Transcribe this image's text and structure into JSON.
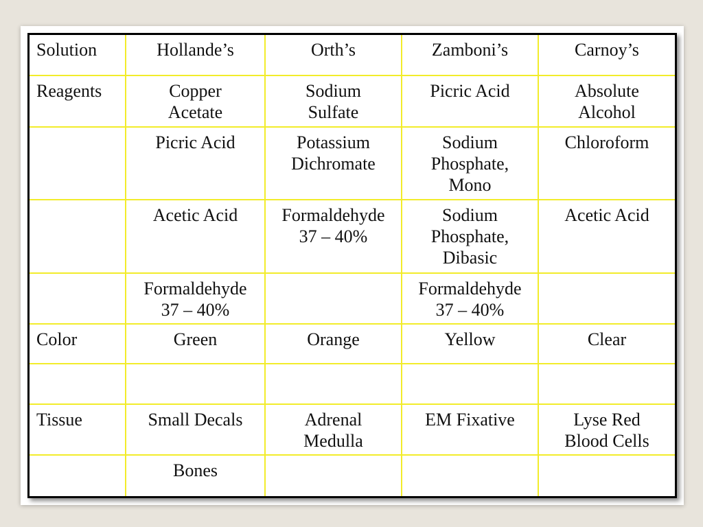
{
  "table": {
    "rows": [
      [
        "Solution",
        "Hollande’s",
        "Orth’s",
        "Zamboni’s",
        "Carnoy’s"
      ],
      [
        "Reagents",
        "Copper\nAcetate",
        "Sodium\nSulfate",
        "Picric Acid",
        "Absolute\nAlcohol"
      ],
      [
        "",
        "Picric Acid",
        "Potassium\nDichromate",
        "Sodium\nPhosphate,\nMono",
        "Chloroform"
      ],
      [
        "",
        "Acetic Acid",
        "Formaldehyde\n37 – 40%",
        "Sodium\nPhosphate,\nDibasic",
        "Acetic Acid"
      ],
      [
        "",
        "Formaldehyde\n37 – 40%",
        "",
        "Formaldehyde\n37 – 40%",
        ""
      ],
      [
        "Color",
        "Green",
        "Orange",
        "Yellow",
        "Clear"
      ],
      [
        "",
        "",
        "",
        "",
        ""
      ],
      [
        "Tissue",
        "Small Decals",
        "Adrenal\nMedulla",
        "EM Fixative",
        "Lyse Red\nBlood Cells"
      ],
      [
        "",
        "Bones",
        "",
        "",
        ""
      ]
    ]
  },
  "colors": {
    "grid_line": "#f2ec2a",
    "frame": "#000000",
    "background": "#e8e4dc"
  }
}
